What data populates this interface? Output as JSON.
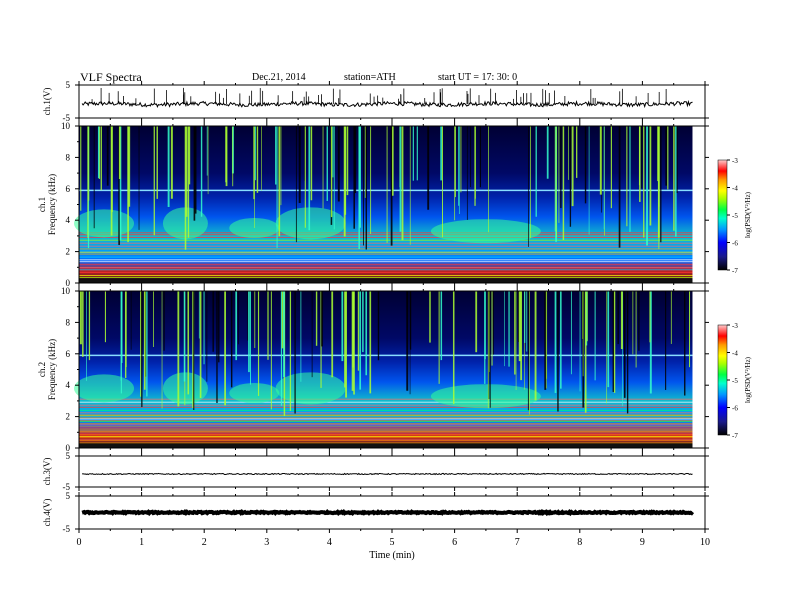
{
  "header": {
    "title": "VLF  Spectra",
    "date": "Dec.21, 2014",
    "station": "station=ATH",
    "start": "start  UT  =   17: 30: 0"
  },
  "chart_data": [
    {
      "type": "line",
      "name": "ch1-waveform",
      "ylabel": "ch.1(V)",
      "ylim": [
        -5,
        5
      ],
      "yticks": [
        "5",
        "-5"
      ],
      "xlim": [
        0,
        10
      ],
      "baseline_v": -0.8,
      "trace_end_x": 9.8
    },
    {
      "type": "heatmap",
      "name": "ch1-spectrogram",
      "ylabel": "ch.1\nFrequency (kHz)",
      "ylim": [
        0,
        10
      ],
      "yticks": [
        "0",
        "2",
        "4",
        "6",
        "8",
        "10"
      ],
      "xlim": [
        0,
        10
      ],
      "data_end_x": 9.8,
      "colorbar": {
        "label": "log(PSD(V²/Hz)",
        "range": [
          -7,
          -3
        ],
        "ticks": [
          "-3",
          "-4",
          "-5",
          "-6",
          "-7"
        ]
      }
    },
    {
      "type": "heatmap",
      "name": "ch2-spectrogram",
      "ylabel": "ch.2\nFrequency (kHz)",
      "ylim": [
        0,
        10
      ],
      "yticks": [
        "0",
        "2",
        "4",
        "6",
        "8",
        "10"
      ],
      "xlim": [
        0,
        10
      ],
      "data_end_x": 9.8,
      "colorbar": {
        "label": "log(PSD(V²/Hz)",
        "range": [
          -7,
          -3
        ],
        "ticks": [
          "-3",
          "-4",
          "-5",
          "-6",
          "-7"
        ]
      }
    },
    {
      "type": "line",
      "name": "ch3-waveform",
      "ylabel": "ch.3(V)",
      "ylim": [
        -5,
        5
      ],
      "yticks": [
        "5",
        "-5"
      ],
      "xlim": [
        0,
        10
      ],
      "baseline_v": -0.8
    },
    {
      "type": "line",
      "name": "ch4-waveform",
      "ylabel": "ch.4(V)",
      "ylim": [
        -5,
        5
      ],
      "yticks": [
        "5",
        "-5"
      ],
      "xlim": [
        0,
        10
      ],
      "baseline_v": 0
    }
  ],
  "xaxis": {
    "label": "Time  (min)",
    "ticks": [
      "0",
      "1",
      "2",
      "3",
      "4",
      "5",
      "6",
      "7",
      "8",
      "9",
      "10"
    ]
  },
  "colormap": [
    "#000000",
    "#1a1a6e",
    "#0000ff",
    "#0088ff",
    "#00ffff",
    "#00ff88",
    "#88ff00",
    "#ffff00",
    "#ffaa00",
    "#ff0000",
    "#ffaaaa"
  ]
}
